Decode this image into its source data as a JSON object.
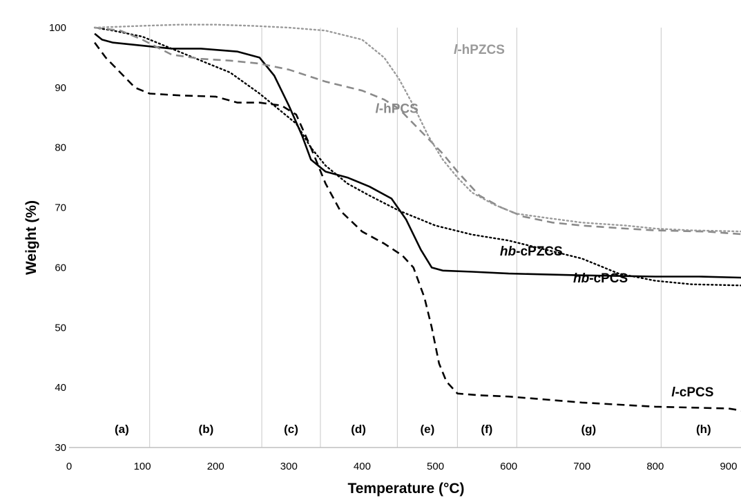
{
  "chart_data": {
    "type": "line",
    "xlabel": "Temperature (°C)",
    "ylabel": "Weight (%)",
    "xlim": [
      0,
      925
    ],
    "ylim": [
      30,
      100
    ],
    "x_ticks": [
      0,
      100,
      200,
      300,
      400,
      500,
      600,
      700,
      800,
      900
    ],
    "y_ticks": [
      30,
      40,
      50,
      60,
      70,
      80,
      90,
      100
    ],
    "grid": false,
    "region_boundaries": [
      110,
      263,
      343,
      448,
      530,
      611,
      808
    ],
    "regions": [
      {
        "label": "(a)",
        "x_center": 72
      },
      {
        "label": "(b)",
        "x_center": 187
      },
      {
        "label": "(c)",
        "x_center": 303
      },
      {
        "label": "(d)",
        "x_center": 395
      },
      {
        "label": "(e)",
        "x_center": 489
      },
      {
        "label": "(f)",
        "x_center": 570
      },
      {
        "label": "(g)",
        "x_center": 709
      },
      {
        "label": "(h)",
        "x_center": 866
      }
    ],
    "series": [
      {
        "name_prefix": "hb",
        "name_suffix": "-cPZCS",
        "color": "#000000",
        "line_style": "solid",
        "label_x": 588,
        "label_y": 62,
        "points": [
          [
            35,
            99
          ],
          [
            45,
            98
          ],
          [
            60,
            97.5
          ],
          [
            100,
            97
          ],
          [
            140,
            96.5
          ],
          [
            180,
            96.5
          ],
          [
            230,
            96
          ],
          [
            260,
            95
          ],
          [
            280,
            92
          ],
          [
            300,
            87
          ],
          [
            318,
            82
          ],
          [
            330,
            78
          ],
          [
            350,
            76
          ],
          [
            380,
            75
          ],
          [
            410,
            73.5
          ],
          [
            440,
            71.5
          ],
          [
            460,
            68
          ],
          [
            480,
            63
          ],
          [
            495,
            60
          ],
          [
            510,
            59.5
          ],
          [
            550,
            59.3
          ],
          [
            600,
            59
          ],
          [
            700,
            58.7
          ],
          [
            800,
            58.5
          ],
          [
            860,
            58.5
          ],
          [
            925,
            58.3
          ]
        ]
      },
      {
        "name_prefix": "hb",
        "name_suffix": "-cPCS",
        "color": "#000000",
        "line_style": "dotted",
        "label_x": 688,
        "label_y": 57.5,
        "points": [
          [
            35,
            100
          ],
          [
            60,
            99.5
          ],
          [
            100,
            98.5
          ],
          [
            140,
            96.5
          ],
          [
            180,
            94.5
          ],
          [
            220,
            92.5
          ],
          [
            260,
            89
          ],
          [
            290,
            86
          ],
          [
            310,
            84
          ],
          [
            330,
            80
          ],
          [
            350,
            77
          ],
          [
            380,
            74
          ],
          [
            410,
            72
          ],
          [
            450,
            69.5
          ],
          [
            500,
            67
          ],
          [
            550,
            65.5
          ],
          [
            600,
            64.5
          ],
          [
            650,
            63
          ],
          [
            700,
            61.5
          ],
          [
            750,
            59
          ],
          [
            800,
            57.8
          ],
          [
            850,
            57.2
          ],
          [
            925,
            57
          ]
        ]
      },
      {
        "name_prefix": "l",
        "name_suffix": "-cPCS",
        "color": "#000000",
        "line_style": "dashed",
        "label_x": 822,
        "label_y": 38.5,
        "points": [
          [
            35,
            97.5
          ],
          [
            50,
            95
          ],
          [
            70,
            92.5
          ],
          [
            90,
            90
          ],
          [
            110,
            89
          ],
          [
            150,
            88.7
          ],
          [
            200,
            88.5
          ],
          [
            230,
            87.5
          ],
          [
            260,
            87.5
          ],
          [
            290,
            87
          ],
          [
            310,
            85.5
          ],
          [
            330,
            80
          ],
          [
            350,
            74
          ],
          [
            370,
            69.5
          ],
          [
            400,
            66
          ],
          [
            430,
            64
          ],
          [
            455,
            62
          ],
          [
            470,
            60
          ],
          [
            485,
            55
          ],
          [
            495,
            50
          ],
          [
            505,
            44
          ],
          [
            515,
            41
          ],
          [
            530,
            39
          ],
          [
            560,
            38.7
          ],
          [
            600,
            38.5
          ],
          [
            650,
            38
          ],
          [
            700,
            37.5
          ],
          [
            800,
            36.8
          ],
          [
            900,
            36.5
          ],
          [
            925,
            36
          ]
        ]
      },
      {
        "name_prefix": "l",
        "name_suffix": "-hPCS",
        "color": "#8a8a8a",
        "line_style": "dashed",
        "label_x": 418,
        "label_y": 85.8,
        "points": [
          [
            35,
            100
          ],
          [
            70,
            99.5
          ],
          [
            100,
            98
          ],
          [
            140,
            95.5
          ],
          [
            180,
            94.8
          ],
          [
            220,
            94.5
          ],
          [
            260,
            94
          ],
          [
            300,
            93
          ],
          [
            350,
            91
          ],
          [
            400,
            89.5
          ],
          [
            430,
            88
          ],
          [
            450,
            86.5
          ],
          [
            470,
            84
          ],
          [
            490,
            81.5
          ],
          [
            510,
            79
          ],
          [
            530,
            76
          ],
          [
            560,
            72
          ],
          [
            590,
            70
          ],
          [
            620,
            68.5
          ],
          [
            660,
            67.5
          ],
          [
            700,
            67
          ],
          [
            760,
            66.5
          ],
          [
            800,
            66.2
          ],
          [
            870,
            66
          ],
          [
            925,
            65.5
          ]
        ]
      },
      {
        "name_prefix": "l",
        "name_suffix": "-hPZCS",
        "color": "#9a9a9a",
        "line_style": "dotted",
        "label_x": 525,
        "label_y": 95.6,
        "points": [
          [
            35,
            100
          ],
          [
            100,
            100.3
          ],
          [
            150,
            100.5
          ],
          [
            200,
            100.5
          ],
          [
            250,
            100.3
          ],
          [
            300,
            100
          ],
          [
            350,
            99.5
          ],
          [
            400,
            98
          ],
          [
            430,
            95
          ],
          [
            450,
            91.5
          ],
          [
            470,
            87
          ],
          [
            490,
            82
          ],
          [
            510,
            78
          ],
          [
            530,
            75
          ],
          [
            550,
            72.5
          ],
          [
            580,
            70.5
          ],
          [
            610,
            69
          ],
          [
            650,
            68.3
          ],
          [
            700,
            67.5
          ],
          [
            760,
            67
          ],
          [
            800,
            66.5
          ],
          [
            850,
            66.2
          ],
          [
            925,
            66
          ]
        ]
      }
    ]
  }
}
